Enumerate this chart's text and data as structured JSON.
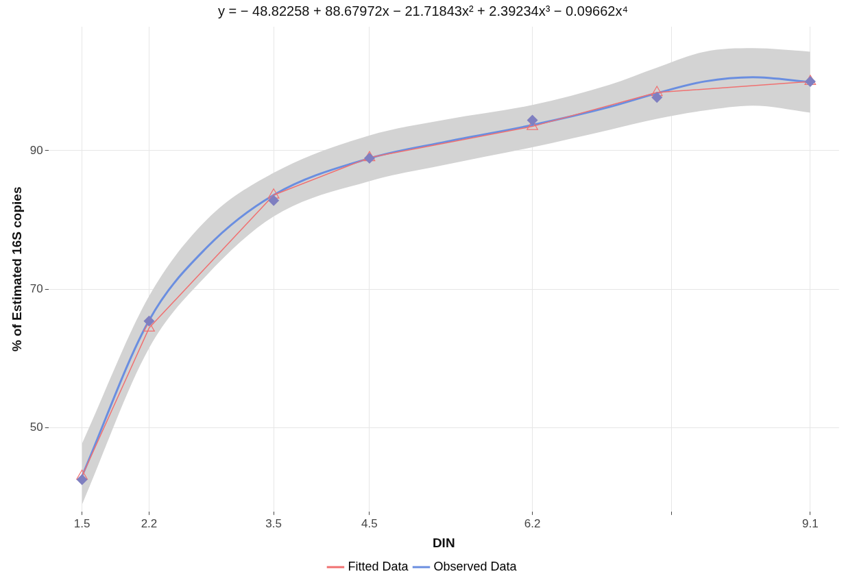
{
  "chart_data": {
    "type": "line",
    "title": "y = − 48.82258 + 88.67972x − 21.71843x² + 2.39234x³ − 0.09662x⁴",
    "xlabel": "DIN",
    "ylabel": "% of Estimated 16S copies",
    "xlim": [
      1.15,
      9.4
    ],
    "xticks": [
      1.5,
      2.2,
      3.5,
      4.5,
      6.2,
      {
        "value": 7.65,
        "label": null
      },
      9.1
    ],
    "ylim": [
      37.9,
      107.9
    ],
    "yticks": [
      50,
      70,
      90
    ],
    "grid": true,
    "legend": "bottom",
    "series": [
      {
        "name": "Fitted Data",
        "color": "#f07070",
        "marker": "triangle",
        "x": [
          1.5,
          2.2,
          3.5,
          4.5,
          6.2,
          7.5,
          9.1
        ],
        "values": [
          43.0,
          64.4,
          83.6,
          89.0,
          93.5,
          98.4,
          100.0
        ]
      },
      {
        "name": "Observed Data",
        "color": "#6a8ee0",
        "marker": "none",
        "x": [
          1.5,
          2.2,
          2.8,
          3.5,
          4.5,
          5.3,
          6.2,
          7.0,
          7.5,
          8.0,
          8.5,
          9.1
        ],
        "values": [
          43,
          65.5,
          76,
          83.6,
          88.9,
          91.3,
          93.7,
          96.3,
          98.3,
          100.0,
          100.6,
          99.9
        ],
        "lower": [
          38.9,
          61.5,
          72,
          80.5,
          85.6,
          88,
          90.5,
          93,
          94.6,
          95.8,
          96.5,
          95.5
        ],
        "upper": [
          47.7,
          69,
          80,
          86.8,
          92.2,
          94.5,
          96.6,
          99.5,
          102,
          104.3,
          104.8,
          104.3
        ]
      },
      {
        "color": "#7f7fc0",
        "type": "scatter",
        "marker": "diamond",
        "x": [
          1.5,
          2.2,
          3.5,
          4.5,
          6.2,
          7.5,
          9.1
        ],
        "values": [
          42.5,
          65.4,
          82.8,
          88.9,
          94.4,
          97.7,
          100.0
        ]
      }
    ]
  }
}
